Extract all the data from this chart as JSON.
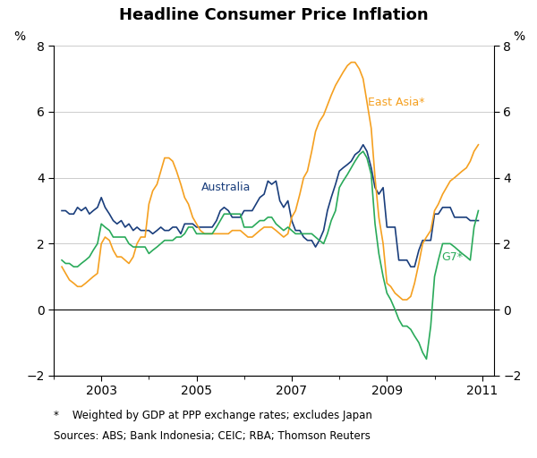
{
  "title": "Headline Consumer Price Inflation",
  "ylabel_left": "%",
  "ylabel_right": "%",
  "ylim": [
    -2,
    8
  ],
  "yticks": [
    -2,
    0,
    2,
    4,
    6,
    8
  ],
  "footnote_line1": "*    Weighted by GDP at PPP exchange rates; excludes Japan",
  "footnote_line2": "Sources: ABS; Bank Indonesia; CEIC; RBA; Thomson Reuters",
  "colors": {
    "australia": "#1a3e7c",
    "east_asia": "#f5a020",
    "g7": "#2aaa5a"
  },
  "labels": {
    "australia": "Australia",
    "east_asia": "East Asia*",
    "g7": "G7*"
  },
  "australia": {
    "x": [
      2002.17,
      2002.25,
      2002.33,
      2002.42,
      2002.5,
      2002.58,
      2002.67,
      2002.75,
      2002.83,
      2002.92,
      2003.0,
      2003.08,
      2003.17,
      2003.25,
      2003.33,
      2003.42,
      2003.5,
      2003.58,
      2003.67,
      2003.75,
      2003.83,
      2003.92,
      2004.0,
      2004.08,
      2004.17,
      2004.25,
      2004.33,
      2004.42,
      2004.5,
      2004.58,
      2004.67,
      2004.75,
      2004.83,
      2004.92,
      2005.0,
      2005.08,
      2005.17,
      2005.25,
      2005.33,
      2005.42,
      2005.5,
      2005.58,
      2005.67,
      2005.75,
      2005.83,
      2005.92,
      2006.0,
      2006.08,
      2006.17,
      2006.25,
      2006.33,
      2006.42,
      2006.5,
      2006.58,
      2006.67,
      2006.75,
      2006.83,
      2006.92,
      2007.0,
      2007.08,
      2007.17,
      2007.25,
      2007.33,
      2007.42,
      2007.5,
      2007.58,
      2007.67,
      2007.75,
      2007.83,
      2007.92,
      2008.0,
      2008.08,
      2008.17,
      2008.25,
      2008.33,
      2008.42,
      2008.5,
      2008.58,
      2008.67,
      2008.75,
      2008.83,
      2008.92,
      2009.0,
      2009.08,
      2009.17,
      2009.25,
      2009.33,
      2009.42,
      2009.5,
      2009.58,
      2009.67,
      2009.75,
      2009.83,
      2009.92,
      2010.0,
      2010.08,
      2010.17,
      2010.25,
      2010.33,
      2010.42,
      2010.5,
      2010.58,
      2010.67,
      2010.75,
      2010.83,
      2010.92
    ],
    "y": [
      3.0,
      3.0,
      2.9,
      2.9,
      3.1,
      3.0,
      3.1,
      2.9,
      3.0,
      3.1,
      3.4,
      3.1,
      2.9,
      2.7,
      2.6,
      2.7,
      2.5,
      2.6,
      2.4,
      2.5,
      2.4,
      2.4,
      2.4,
      2.3,
      2.4,
      2.5,
      2.4,
      2.4,
      2.5,
      2.5,
      2.3,
      2.6,
      2.6,
      2.6,
      2.5,
      2.5,
      2.5,
      2.5,
      2.5,
      2.7,
      3.0,
      3.1,
      3.0,
      2.8,
      2.8,
      2.8,
      3.0,
      3.0,
      3.0,
      3.2,
      3.4,
      3.5,
      3.9,
      3.8,
      3.9,
      3.3,
      3.1,
      3.3,
      2.7,
      2.4,
      2.4,
      2.2,
      2.1,
      2.1,
      1.9,
      2.1,
      2.4,
      3.0,
      3.4,
      3.8,
      4.2,
      4.3,
      4.4,
      4.5,
      4.7,
      4.8,
      5.0,
      4.8,
      4.3,
      3.7,
      3.5,
      3.7,
      2.5,
      2.5,
      2.5,
      1.5,
      1.5,
      1.5,
      1.3,
      1.3,
      1.8,
      2.1,
      2.1,
      2.1,
      2.9,
      2.9,
      3.1,
      3.1,
      3.1,
      2.8,
      2.8,
      2.8,
      2.8,
      2.7,
      2.7,
      2.7
    ]
  },
  "east_asia": {
    "x": [
      2002.17,
      2002.25,
      2002.33,
      2002.42,
      2002.5,
      2002.58,
      2002.67,
      2002.75,
      2002.83,
      2002.92,
      2003.0,
      2003.08,
      2003.17,
      2003.25,
      2003.33,
      2003.42,
      2003.5,
      2003.58,
      2003.67,
      2003.75,
      2003.83,
      2003.92,
      2004.0,
      2004.08,
      2004.17,
      2004.25,
      2004.33,
      2004.42,
      2004.5,
      2004.58,
      2004.67,
      2004.75,
      2004.83,
      2004.92,
      2005.0,
      2005.08,
      2005.17,
      2005.25,
      2005.33,
      2005.42,
      2005.5,
      2005.58,
      2005.67,
      2005.75,
      2005.83,
      2005.92,
      2006.0,
      2006.08,
      2006.17,
      2006.25,
      2006.33,
      2006.42,
      2006.5,
      2006.58,
      2006.67,
      2006.75,
      2006.83,
      2006.92,
      2007.0,
      2007.08,
      2007.17,
      2007.25,
      2007.33,
      2007.42,
      2007.5,
      2007.58,
      2007.67,
      2007.75,
      2007.83,
      2007.92,
      2008.0,
      2008.08,
      2008.17,
      2008.25,
      2008.33,
      2008.42,
      2008.5,
      2008.58,
      2008.67,
      2008.75,
      2008.83,
      2008.92,
      2009.0,
      2009.08,
      2009.17,
      2009.25,
      2009.33,
      2009.42,
      2009.5,
      2009.58,
      2009.67,
      2009.75,
      2009.83,
      2009.92,
      2010.0,
      2010.08,
      2010.17,
      2010.25,
      2010.33,
      2010.42,
      2010.5,
      2010.58,
      2010.67,
      2010.75,
      2010.83,
      2010.92
    ],
    "y": [
      1.3,
      1.1,
      0.9,
      0.8,
      0.7,
      0.7,
      0.8,
      0.9,
      1.0,
      1.1,
      2.0,
      2.2,
      2.1,
      1.8,
      1.6,
      1.6,
      1.5,
      1.4,
      1.6,
      2.0,
      2.2,
      2.2,
      3.2,
      3.6,
      3.8,
      4.2,
      4.6,
      4.6,
      4.5,
      4.2,
      3.8,
      3.4,
      3.2,
      2.8,
      2.6,
      2.4,
      2.3,
      2.3,
      2.3,
      2.3,
      2.3,
      2.3,
      2.3,
      2.4,
      2.4,
      2.4,
      2.3,
      2.2,
      2.2,
      2.3,
      2.4,
      2.5,
      2.5,
      2.5,
      2.4,
      2.3,
      2.2,
      2.3,
      2.8,
      3.0,
      3.5,
      4.0,
      4.2,
      4.8,
      5.4,
      5.7,
      5.9,
      6.2,
      6.5,
      6.8,
      7.0,
      7.2,
      7.4,
      7.5,
      7.5,
      7.3,
      7.0,
      6.3,
      5.5,
      4.0,
      2.8,
      2.0,
      0.8,
      0.7,
      0.5,
      0.4,
      0.3,
      0.3,
      0.4,
      0.8,
      1.4,
      2.0,
      2.2,
      2.4,
      3.0,
      3.2,
      3.5,
      3.7,
      3.9,
      4.0,
      4.1,
      4.2,
      4.3,
      4.5,
      4.8,
      5.0
    ]
  },
  "g7": {
    "x": [
      2002.17,
      2002.25,
      2002.33,
      2002.42,
      2002.5,
      2002.58,
      2002.67,
      2002.75,
      2002.83,
      2002.92,
      2003.0,
      2003.08,
      2003.17,
      2003.25,
      2003.33,
      2003.42,
      2003.5,
      2003.58,
      2003.67,
      2003.75,
      2003.83,
      2003.92,
      2004.0,
      2004.08,
      2004.17,
      2004.25,
      2004.33,
      2004.42,
      2004.5,
      2004.58,
      2004.67,
      2004.75,
      2004.83,
      2004.92,
      2005.0,
      2005.08,
      2005.17,
      2005.25,
      2005.33,
      2005.42,
      2005.5,
      2005.58,
      2005.67,
      2005.75,
      2005.83,
      2005.92,
      2006.0,
      2006.08,
      2006.17,
      2006.25,
      2006.33,
      2006.42,
      2006.5,
      2006.58,
      2006.67,
      2006.75,
      2006.83,
      2006.92,
      2007.0,
      2007.08,
      2007.17,
      2007.25,
      2007.33,
      2007.42,
      2007.5,
      2007.58,
      2007.67,
      2007.75,
      2007.83,
      2007.92,
      2008.0,
      2008.08,
      2008.17,
      2008.25,
      2008.33,
      2008.42,
      2008.5,
      2008.58,
      2008.67,
      2008.75,
      2008.83,
      2008.92,
      2009.0,
      2009.08,
      2009.17,
      2009.25,
      2009.33,
      2009.42,
      2009.5,
      2009.58,
      2009.67,
      2009.75,
      2009.83,
      2009.92,
      2010.0,
      2010.08,
      2010.17,
      2010.25,
      2010.33,
      2010.42,
      2010.5,
      2010.58,
      2010.67,
      2010.75,
      2010.83,
      2010.92
    ],
    "y": [
      1.5,
      1.4,
      1.4,
      1.3,
      1.3,
      1.4,
      1.5,
      1.6,
      1.8,
      2.0,
      2.6,
      2.5,
      2.4,
      2.2,
      2.2,
      2.2,
      2.2,
      2.0,
      1.9,
      1.9,
      1.9,
      1.9,
      1.7,
      1.8,
      1.9,
      2.0,
      2.1,
      2.1,
      2.1,
      2.2,
      2.2,
      2.3,
      2.5,
      2.5,
      2.3,
      2.3,
      2.3,
      2.3,
      2.3,
      2.5,
      2.7,
      2.9,
      2.9,
      2.9,
      2.9,
      2.9,
      2.5,
      2.5,
      2.5,
      2.6,
      2.7,
      2.7,
      2.8,
      2.8,
      2.6,
      2.5,
      2.4,
      2.5,
      2.4,
      2.3,
      2.3,
      2.3,
      2.3,
      2.3,
      2.2,
      2.1,
      2.0,
      2.3,
      2.7,
      3.0,
      3.7,
      3.9,
      4.1,
      4.3,
      4.5,
      4.7,
      4.8,
      4.6,
      4.1,
      2.6,
      1.7,
      1.0,
      0.5,
      0.3,
      0.0,
      -0.3,
      -0.5,
      -0.5,
      -0.6,
      -0.8,
      -1.0,
      -1.3,
      -1.5,
      -0.5,
      1.0,
      1.5,
      2.0,
      2.0,
      2.0,
      1.9,
      1.8,
      1.7,
      1.6,
      1.5,
      2.5,
      3.0
    ]
  },
  "xtick_years": [
    2003,
    2005,
    2007,
    2009,
    2011
  ],
  "xmin": 2002.08,
  "xmax": 2011.25,
  "label_positions": {
    "east_asia": [
      2008.6,
      6.2
    ],
    "australia": [
      2005.1,
      3.6
    ],
    "g7": [
      2010.15,
      1.5
    ]
  }
}
